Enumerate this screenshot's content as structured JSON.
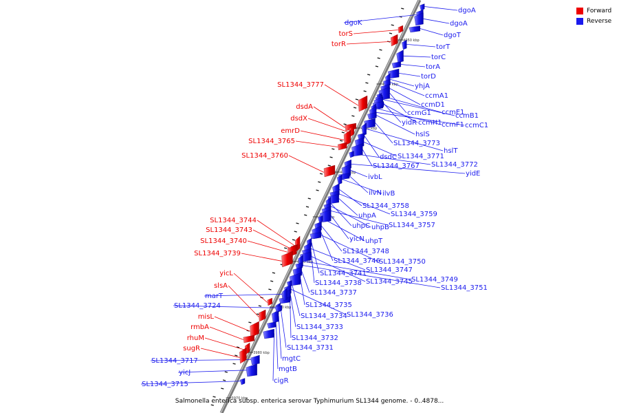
{
  "legend": {
    "forward_label": "Forward",
    "reverse_label": "Reverse",
    "forward_color": "#ee0000",
    "reverse_color": "#1a1aee"
  },
  "caption": "Salmonella enterica subsp. enterica serovar Typhimurium SL1344 genome. - 0..4878...",
  "scale_ticks": [
    "4050 kbp",
    "4040 kbp",
    "4030 kbp",
    "4020 kbp",
    "4010 kbp",
    "4000 kbp",
    "3990 kbp",
    "3980 kbp",
    "3970 kbp"
  ],
  "genes": {
    "reverse": [
      "dgoA",
      "dgoK",
      "dgoA",
      "dgoT",
      "torT",
      "torC",
      "torA",
      "torD",
      "yhjA",
      "ccmA1",
      "ccmD1",
      "ccmG1",
      "ccmE1",
      "ccmB1",
      "yidR",
      "ccmH1",
      "ccmF1",
      "ccmC1",
      "hslS",
      "SL1344_3773",
      "hslT",
      "dsdC",
      "SL1344_3771",
      "SL1344_3767",
      "SL1344_3772",
      "yidE",
      "ivbL",
      "ilvN",
      "ilvB",
      "SL1344_3758",
      "SL1344_3759",
      "uhpA",
      "uhpC",
      "uhpB",
      "SL1344_3757",
      "yicN",
      "uhpT",
      "SL1344_3748",
      "SL1344_3746",
      "SL1344_3750",
      "SL1344_3741",
      "SL1344_3747",
      "SL1344_3738",
      "SL1344_3745",
      "SL1344_3749",
      "SL1344_3751",
      "SL1344_3737",
      "SL1344_3735",
      "SL1344_3734",
      "SL1344_3736",
      "SL1344_3733",
      "SL1344_3732",
      "SL1344_3731",
      "mgtC",
      "mgtB",
      "cigR",
      "marT",
      "SL1344_3724",
      "SL1344_3717",
      "yicJ",
      "SL1344_3715"
    ],
    "forward": [
      "torS",
      "torR",
      "SL1344_3777",
      "dsdA",
      "dsdX",
      "emrD",
      "SL1344_3765",
      "SL1344_3760",
      "SL1344_3744",
      "SL1344_3743",
      "SL1344_3740",
      "SL1344_3739",
      "yicL",
      "slsA",
      "misL",
      "rmbA",
      "rhuM",
      "sugR"
    ]
  }
}
